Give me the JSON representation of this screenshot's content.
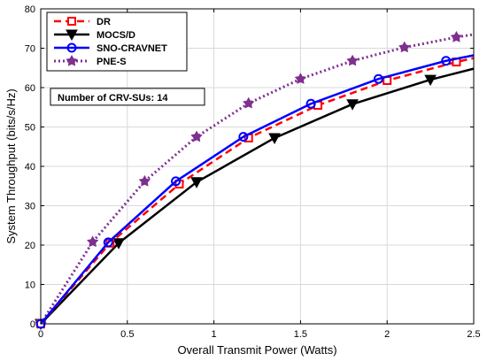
{
  "chart_data": {
    "type": "line",
    "title": "",
    "xlabel": "Overall Transmit Power (Watts)",
    "ylabel": "System Throughput (bits/s/Hz)",
    "xlim": [
      0,
      2.5
    ],
    "ylim": [
      0,
      80
    ],
    "xticks": [
      0,
      0.5,
      1,
      1.5,
      2,
      2.5
    ],
    "yticks": [
      0,
      10,
      20,
      30,
      40,
      50,
      60,
      70,
      80
    ],
    "xtick_labels": [
      "0",
      "0.5",
      "1",
      "1.5",
      "2",
      "2.5"
    ],
    "ytick_labels": [
      "0",
      "10",
      "20",
      "30",
      "40",
      "50",
      "60",
      "70",
      "80"
    ],
    "grid": true,
    "legend_position": "top-left",
    "annotation": "Number of CRV-SUs: 14",
    "series": [
      {
        "name": "DR",
        "color": "#ff0000",
        "line": "dashed",
        "marker": "square",
        "x": [
          0,
          0.4,
          0.8,
          1.2,
          1.6,
          2.0,
          2.4,
          2.5
        ],
        "y": [
          0,
          20.5,
          35.5,
          47.2,
          55.5,
          61.8,
          66.5,
          67.5
        ]
      },
      {
        "name": "MOCS/D",
        "color": "#000000",
        "line": "solid",
        "marker": "triangle-down",
        "x": [
          0,
          0.45,
          0.9,
          1.35,
          1.8,
          2.25,
          2.5
        ],
        "y": [
          0,
          20.5,
          36.0,
          47.2,
          55.8,
          62.0,
          64.8
        ]
      },
      {
        "name": "SNO-CRAVNET",
        "color": "#0000ff",
        "line": "solid",
        "marker": "circle",
        "x": [
          0,
          0.39,
          0.78,
          1.17,
          1.56,
          1.95,
          2.34,
          2.5
        ],
        "y": [
          0,
          20.7,
          36.2,
          47.5,
          55.9,
          62.2,
          66.8,
          68.2
        ]
      },
      {
        "name": "PNE-S",
        "color": "#7f2f8f",
        "line": "dotted",
        "marker": "star",
        "x": [
          0,
          0.3,
          0.6,
          0.9,
          1.2,
          1.5,
          1.8,
          2.1,
          2.4,
          2.5
        ],
        "y": [
          0,
          20.8,
          36.2,
          47.5,
          56.0,
          62.2,
          66.8,
          70.2,
          72.8,
          73.5
        ]
      }
    ]
  }
}
